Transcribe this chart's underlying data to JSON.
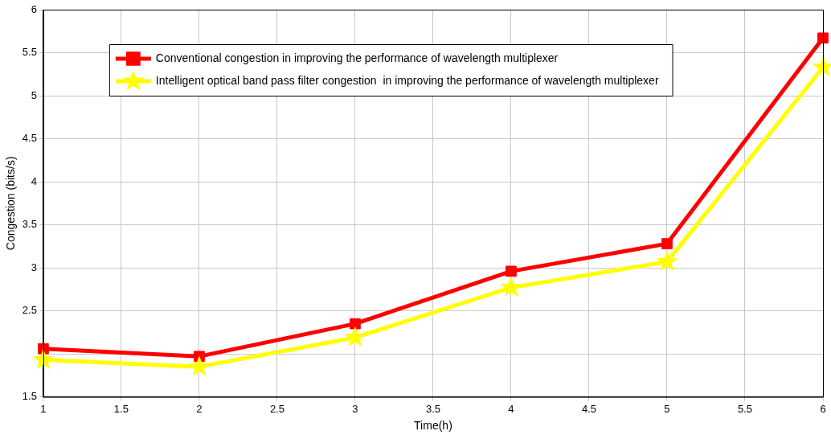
{
  "chart_data": {
    "type": "line",
    "xlabel": "Time(h)",
    "ylabel": "Congestion (bits/s)",
    "x": [
      1,
      2,
      3,
      4,
      5,
      6
    ],
    "series": [
      {
        "name": "Conventional congestion in improving the performance of wavelength multiplexer",
        "color": "#ff0000",
        "marker": "square",
        "values": [
          2.06,
          1.97,
          2.35,
          2.96,
          3.28,
          5.67
        ]
      },
      {
        "name": "Intelligent optical band pass filter congestion  in improving the performance of wavelength multiplexer",
        "color": "#ffff00",
        "marker": "star",
        "values": [
          1.93,
          1.85,
          2.19,
          2.77,
          3.07,
          5.33
        ]
      }
    ],
    "xlim": [
      1,
      6
    ],
    "xticks": [
      1,
      1.5,
      2,
      2.5,
      3,
      3.5,
      4,
      4.5,
      5,
      5.5,
      6
    ],
    "ylim": [
      1.5,
      6
    ],
    "yticks": [
      1.5,
      {
        "value": 2,
        "label": null
      },
      2.5,
      3,
      3.5,
      4,
      4.5,
      5,
      5.5,
      6
    ],
    "grid": true,
    "legend": "top left",
    "line_style": "solid"
  }
}
